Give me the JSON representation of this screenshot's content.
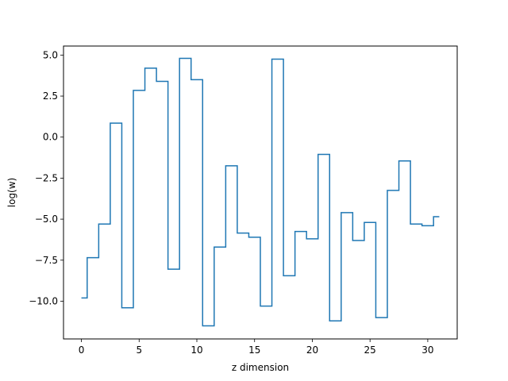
{
  "chart_data": {
    "type": "line",
    "drawstyle": "steps-mid",
    "xlabel": "z dimension",
    "ylabel": "log(w)",
    "xlim": [
      -1.55,
      32.55
    ],
    "ylim": [
      -12.3,
      5.55
    ],
    "xticks": [
      0,
      5,
      10,
      15,
      20,
      25,
      30
    ],
    "xtick_labels": [
      "0",
      "5",
      "10",
      "15",
      "20",
      "25",
      "30"
    ],
    "yticks": [
      -10.0,
      -7.5,
      -5.0,
      -2.5,
      0.0,
      2.5,
      5.0
    ],
    "ytick_labels": [
      "−10.0",
      "−7.5",
      "−5.0",
      "−2.5",
      "0.0",
      "2.5",
      "5.0"
    ],
    "grid": false,
    "series": [
      {
        "color": "#1f77b4",
        "x": [
          0,
          1,
          2,
          3,
          4,
          5,
          6,
          7,
          8,
          9,
          10,
          11,
          12,
          13,
          14,
          15,
          16,
          17,
          18,
          19,
          20,
          21,
          22,
          23,
          24,
          25,
          26,
          27,
          28,
          29,
          30,
          31
        ],
        "values": [
          -9.8,
          -7.35,
          -5.3,
          0.85,
          -10.4,
          2.85,
          4.2,
          3.4,
          -8.05,
          4.8,
          3.5,
          -11.5,
          -6.7,
          -1.75,
          -5.85,
          -6.1,
          -10.3,
          4.75,
          -8.45,
          -5.75,
          -6.2,
          -1.05,
          -11.2,
          -4.6,
          -6.3,
          -5.2,
          -11.0,
          -3.25,
          -1.45,
          -5.3,
          -5.4,
          -4.85
        ]
      }
    ]
  }
}
